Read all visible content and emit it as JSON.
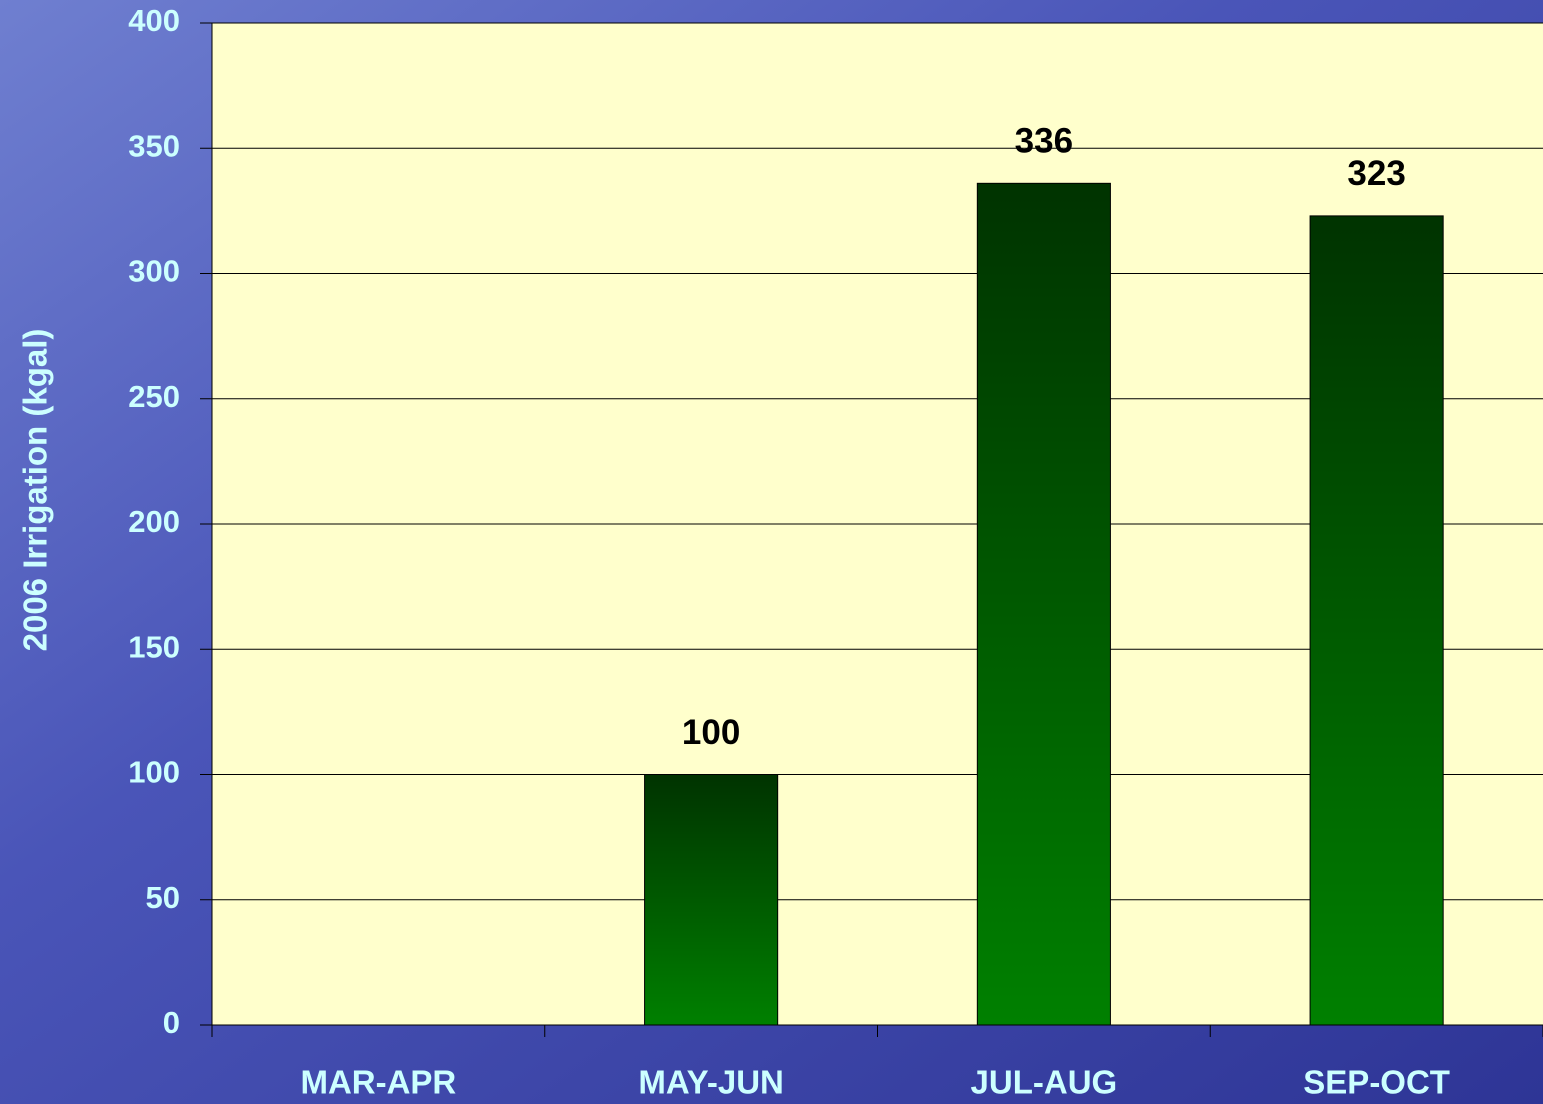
{
  "chart_data": {
    "type": "bar",
    "y_label": "2006 Irrigation (kgal)",
    "categories": [
      "MAR-APR",
      "MAY-JUN",
      "JUL-AUG",
      "SEP-OCT"
    ],
    "values": [
      null,
      100,
      336,
      323
    ],
    "color": "#006600",
    "ylim": [
      0,
      400
    ],
    "yticks": [
      0,
      50,
      100,
      150,
      200,
      250,
      300,
      350,
      400
    ],
    "grid": true
  }
}
